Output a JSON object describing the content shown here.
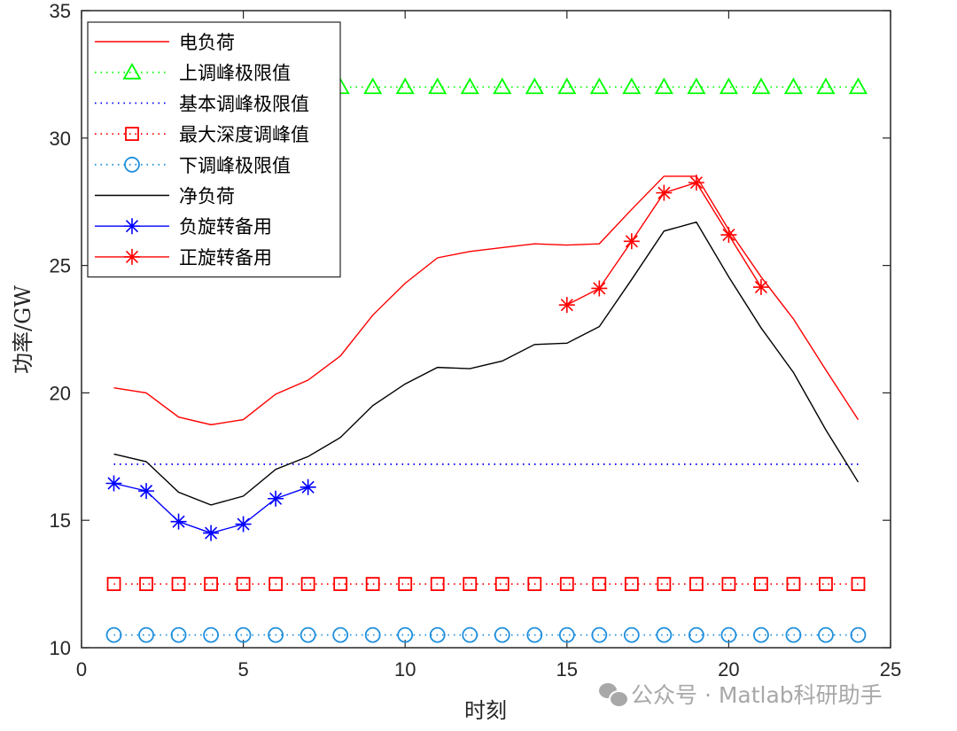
{
  "chart_data": {
    "type": "line",
    "title": "",
    "xlabel": "时刻",
    "ylabel": "功率/GW",
    "xlim": [
      0,
      25
    ],
    "ylim": [
      10,
      35
    ],
    "xticks": [
      0,
      5,
      10,
      15,
      20,
      25
    ],
    "yticks": [
      10,
      15,
      20,
      25,
      30,
      35
    ],
    "grid": false,
    "legend_position": "upper left",
    "x": [
      1,
      2,
      3,
      4,
      5,
      6,
      7,
      8,
      9,
      10,
      11,
      12,
      13,
      14,
      15,
      16,
      17,
      18,
      19,
      20,
      21,
      22,
      23,
      24
    ],
    "series": [
      {
        "name": "电负荷",
        "color": "#ff0000",
        "style": "solid",
        "marker": "none",
        "x": [
          1,
          2,
          3,
          4,
          5,
          6,
          7,
          8,
          9,
          10,
          11,
          12,
          13,
          14,
          15,
          16,
          17,
          18,
          19,
          20,
          21,
          22,
          23,
          24
        ],
        "values": [
          20.2,
          20.0,
          19.05,
          18.75,
          18.95,
          19.95,
          20.5,
          21.45,
          23.05,
          24.3,
          25.3,
          25.55,
          25.7,
          25.85,
          25.8,
          25.85,
          27.2,
          28.5,
          28.5,
          26.4,
          24.55,
          22.9,
          20.9,
          18.95
        ]
      },
      {
        "name": "上调峰极限值",
        "color": "#00ff00",
        "style": "dotted",
        "marker": "triangle",
        "x": [
          1,
          2,
          3,
          4,
          5,
          6,
          7,
          8,
          9,
          10,
          11,
          12,
          13,
          14,
          15,
          16,
          17,
          18,
          19,
          20,
          21,
          22,
          23,
          24
        ],
        "values": [
          32,
          32,
          32,
          32,
          32,
          32,
          32,
          32,
          32,
          32,
          32,
          32,
          32,
          32,
          32,
          32,
          32,
          32,
          32,
          32,
          32,
          32,
          32,
          32
        ]
      },
      {
        "name": "基本调峰极限值",
        "color": "#0000ff",
        "style": "dotted",
        "marker": "none",
        "x": [
          1,
          2,
          3,
          4,
          5,
          6,
          7,
          8,
          9,
          10,
          11,
          12,
          13,
          14,
          15,
          16,
          17,
          18,
          19,
          20,
          21,
          22,
          23,
          24
        ],
        "values": [
          17.2,
          17.2,
          17.2,
          17.2,
          17.2,
          17.2,
          17.2,
          17.2,
          17.2,
          17.2,
          17.2,
          17.2,
          17.2,
          17.2,
          17.2,
          17.2,
          17.2,
          17.2,
          17.2,
          17.2,
          17.2,
          17.2,
          17.2,
          17.2
        ]
      },
      {
        "name": "最大深度调峰值",
        "color": "#ff0000",
        "style": "dotted",
        "marker": "square",
        "x": [
          1,
          2,
          3,
          4,
          5,
          6,
          7,
          8,
          9,
          10,
          11,
          12,
          13,
          14,
          15,
          16,
          17,
          18,
          19,
          20,
          21,
          22,
          23,
          24
        ],
        "values": [
          12.5,
          12.5,
          12.5,
          12.5,
          12.5,
          12.5,
          12.5,
          12.5,
          12.5,
          12.5,
          12.5,
          12.5,
          12.5,
          12.5,
          12.5,
          12.5,
          12.5,
          12.5,
          12.5,
          12.5,
          12.5,
          12.5,
          12.5,
          12.5
        ]
      },
      {
        "name": "下调峰极限值",
        "color": "#1f8fdc",
        "style": "dotted",
        "marker": "circle",
        "x": [
          1,
          2,
          3,
          4,
          5,
          6,
          7,
          8,
          9,
          10,
          11,
          12,
          13,
          14,
          15,
          16,
          17,
          18,
          19,
          20,
          21,
          22,
          23,
          24
        ],
        "values": [
          10.5,
          10.5,
          10.5,
          10.5,
          10.5,
          10.5,
          10.5,
          10.5,
          10.5,
          10.5,
          10.5,
          10.5,
          10.5,
          10.5,
          10.5,
          10.5,
          10.5,
          10.5,
          10.5,
          10.5,
          10.5,
          10.5,
          10.5,
          10.5
        ]
      },
      {
        "name": "净负荷",
        "color": "#000000",
        "style": "solid",
        "marker": "none",
        "x": [
          1,
          2,
          3,
          4,
          5,
          6,
          7,
          8,
          9,
          10,
          11,
          12,
          13,
          14,
          15,
          16,
          17,
          18,
          19,
          20,
          21,
          22,
          23,
          24
        ],
        "values": [
          17.6,
          17.3,
          16.1,
          15.6,
          15.95,
          17.0,
          17.5,
          18.25,
          19.5,
          20.35,
          21.0,
          20.95,
          21.25,
          21.9,
          21.95,
          22.6,
          24.45,
          26.35,
          26.7,
          24.55,
          22.55,
          20.8,
          18.55,
          16.5
        ]
      },
      {
        "name": "负旋转备用",
        "color": "#0000ff",
        "style": "solid",
        "marker": "asterisk",
        "x": [
          1,
          2,
          3,
          4,
          5,
          6,
          7
        ],
        "values": [
          16.45,
          16.15,
          14.95,
          14.5,
          14.85,
          15.85,
          16.3
        ]
      },
      {
        "name": "正旋转备用",
        "color": "#ff0000",
        "style": "solid",
        "marker": "asterisk",
        "x": [
          15,
          16,
          17,
          18,
          19,
          20,
          21
        ],
        "values": [
          23.45,
          24.1,
          25.95,
          27.85,
          28.25,
          26.2,
          24.15
        ]
      }
    ]
  },
  "watermark": {
    "text": "公众号 · Matlab科研助手",
    "icon": "wechat-icon"
  }
}
